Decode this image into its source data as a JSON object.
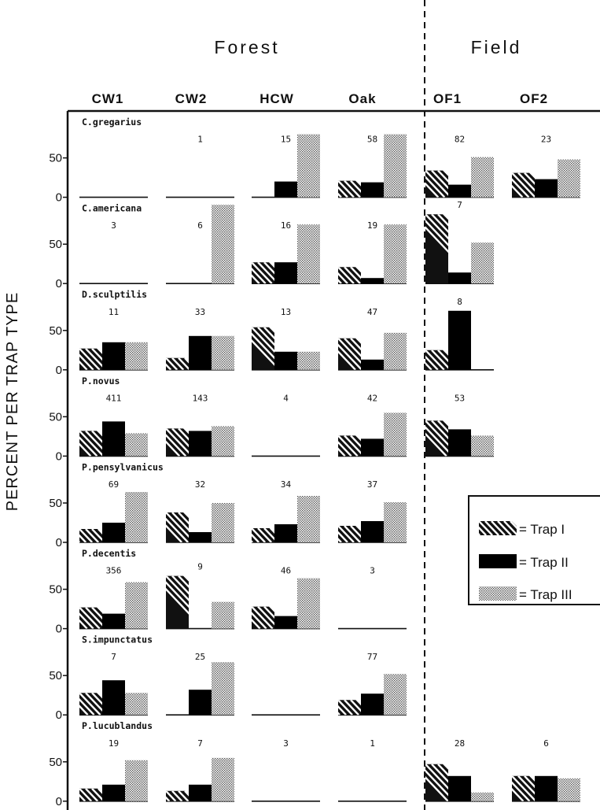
{
  "chart_data": {
    "type": "bar",
    "ylabel": "PERCENT PER TRAP TYPE",
    "habitats": [
      {
        "label": "Forest",
        "columns": [
          "CW1",
          "CW2",
          "HCW",
          "Oak"
        ]
      },
      {
        "label": "Field",
        "columns": [
          "OF1",
          "OF2"
        ]
      }
    ],
    "columns": [
      "CW1",
      "CW2",
      "HCW",
      "Oak",
      "OF1",
      "OF2"
    ],
    "series": [
      {
        "name": "Trap I",
        "color": "#111111",
        "pattern": "hatched"
      },
      {
        "name": "Trap II",
        "color": "#000000",
        "pattern": "solid"
      },
      {
        "name": "Trap III",
        "color": "#bbbbbb",
        "pattern": "stippled"
      }
    ],
    "legend_labels": [
      "= Trap I",
      "= Trap II",
      "= Trap III"
    ],
    "yticks": [
      "50",
      "0"
    ],
    "ylim": [
      0,
      100
    ],
    "panels": [
      {
        "species": "C.gregarius",
        "cells": [
          {
            "count": "",
            "values": [
              0,
              0,
              0
            ]
          },
          {
            "count": "1",
            "values": [
              0,
              0,
              0
            ]
          },
          {
            "count": "15",
            "values": [
              0,
              20,
              80
            ]
          },
          {
            "count": "58",
            "values": [
              21,
              19,
              80
            ]
          },
          {
            "count": "82",
            "values": [
              34,
              16,
              51
            ]
          },
          {
            "count": "23",
            "values": [
              31,
              23,
              48
            ]
          }
        ]
      },
      {
        "species": "C.americana",
        "cells": [
          {
            "count": "3",
            "values": [
              0,
              0,
              0
            ]
          },
          {
            "count": "6",
            "values": [
              0,
              0,
              100
            ]
          },
          {
            "count": "16",
            "values": [
              27,
              27,
              75
            ]
          },
          {
            "count": "19",
            "values": [
              21,
              7,
              75
            ]
          },
          {
            "count": "7",
            "values": [
              88,
              14,
              52
            ]
          },
          {
            "count": "",
            "values": [
              null,
              null,
              null
            ]
          }
        ]
      },
      {
        "species": "D.sculptilis",
        "cells": [
          {
            "count": "11",
            "values": [
              27,
              35,
              35
            ]
          },
          {
            "count": "33",
            "values": [
              15,
              43,
              43
            ]
          },
          {
            "count": "13",
            "values": [
              54,
              23,
              23
            ]
          },
          {
            "count": "47",
            "values": [
              40,
              13,
              47
            ]
          },
          {
            "count": "8",
            "values": [
              25,
              75,
              0
            ]
          },
          {
            "count": "",
            "values": [
              null,
              null,
              null
            ]
          }
        ]
      },
      {
        "species": "P.novus",
        "cells": [
          {
            "count": "411",
            "values": [
              32,
              44,
              29
            ]
          },
          {
            "count": "143",
            "values": [
              35,
              32,
              38
            ]
          },
          {
            "count": "4",
            "values": [
              0,
              0,
              0
            ]
          },
          {
            "count": "42",
            "values": [
              26,
              22,
              55
            ]
          },
          {
            "count": "53",
            "values": [
              45,
              34,
              26
            ]
          },
          {
            "count": "",
            "values": [
              null,
              null,
              null
            ]
          }
        ]
      },
      {
        "species": "P.pensylvanicus",
        "cells": [
          {
            "count": "69",
            "values": [
              17,
              25,
              64
            ]
          },
          {
            "count": "32",
            "values": [
              38,
              13,
              50
            ]
          },
          {
            "count": "34",
            "values": [
              18,
              23,
              59
            ]
          },
          {
            "count": "37",
            "values": [
              21,
              27,
              51
            ]
          },
          {
            "count": "",
            "values": [
              null,
              null,
              null
            ]
          },
          {
            "count": "",
            "values": [
              null,
              null,
              null
            ]
          }
        ]
      },
      {
        "species": "P.decentis",
        "cells": [
          {
            "count": "356",
            "values": [
              27,
              19,
              59
            ]
          },
          {
            "count": "9",
            "values": [
              67,
              0,
              34
            ]
          },
          {
            "count": "46",
            "values": [
              28,
              16,
              64
            ]
          },
          {
            "count": "3",
            "values": [
              0,
              0,
              0
            ]
          },
          {
            "count": "",
            "values": [
              null,
              null,
              null
            ]
          },
          {
            "count": "",
            "values": [
              null,
              null,
              null
            ]
          }
        ]
      },
      {
        "species": "S.impunctatus",
        "cells": [
          {
            "count": "7",
            "values": [
              28,
              44,
              28
            ]
          },
          {
            "count": "25",
            "values": [
              0,
              32,
              67
            ]
          },
          {
            "count": "",
            "values": [
              0,
              0,
              0
            ]
          },
          {
            "count": "77",
            "values": [
              19,
              27,
              52
            ]
          },
          {
            "count": "",
            "values": [
              null,
              null,
              null
            ]
          },
          {
            "count": "",
            "values": [
              null,
              null,
              null
            ]
          }
        ]
      },
      {
        "species": "P.lucublandus",
        "cells": [
          {
            "count": "19",
            "values": [
              16,
              21,
              52
            ]
          },
          {
            "count": "7",
            "values": [
              13,
              21,
              55
            ]
          },
          {
            "count": "3",
            "values": [
              0,
              0,
              0
            ]
          },
          {
            "count": "1",
            "values": [
              0,
              0,
              0
            ]
          },
          {
            "count": "28",
            "values": [
              47,
              32,
              11
            ]
          },
          {
            "count": "6",
            "values": [
              32,
              32,
              29
            ]
          }
        ]
      }
    ]
  }
}
